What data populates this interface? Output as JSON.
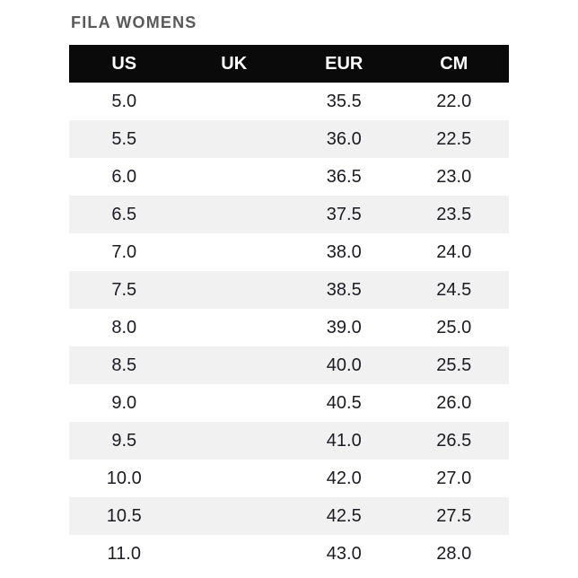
{
  "title": "FILA WOMENS",
  "colors": {
    "header_bg": "#0a0a0a",
    "header_text": "#ffffff",
    "row_bg": "#ffffff",
    "row_alt_bg": "#f1f1f1",
    "title_color": "#59595b",
    "cell_text": "#1b1b21"
  },
  "chart_data": {
    "type": "table",
    "title": "FILA WOMENS",
    "columns": [
      "US",
      "UK",
      "EUR",
      "CM"
    ],
    "rows": [
      [
        "5.0",
        "",
        "35.5",
        "22.0"
      ],
      [
        "5.5",
        "",
        "36.0",
        "22.5"
      ],
      [
        "6.0",
        "",
        "36.5",
        "23.0"
      ],
      [
        "6.5",
        "",
        "37.5",
        "23.5"
      ],
      [
        "7.0",
        "",
        "38.0",
        "24.0"
      ],
      [
        "7.5",
        "",
        "38.5",
        "24.5"
      ],
      [
        "8.0",
        "",
        "39.0",
        "25.0"
      ],
      [
        "8.5",
        "",
        "40.0",
        "25.5"
      ],
      [
        "9.0",
        "",
        "40.5",
        "26.0"
      ],
      [
        "9.5",
        "",
        "41.0",
        "26.5"
      ],
      [
        "10.0",
        "",
        "42.0",
        "27.0"
      ],
      [
        "10.5",
        "",
        "42.5",
        "27.5"
      ],
      [
        "11.0",
        "",
        "43.0",
        "28.0"
      ]
    ]
  }
}
